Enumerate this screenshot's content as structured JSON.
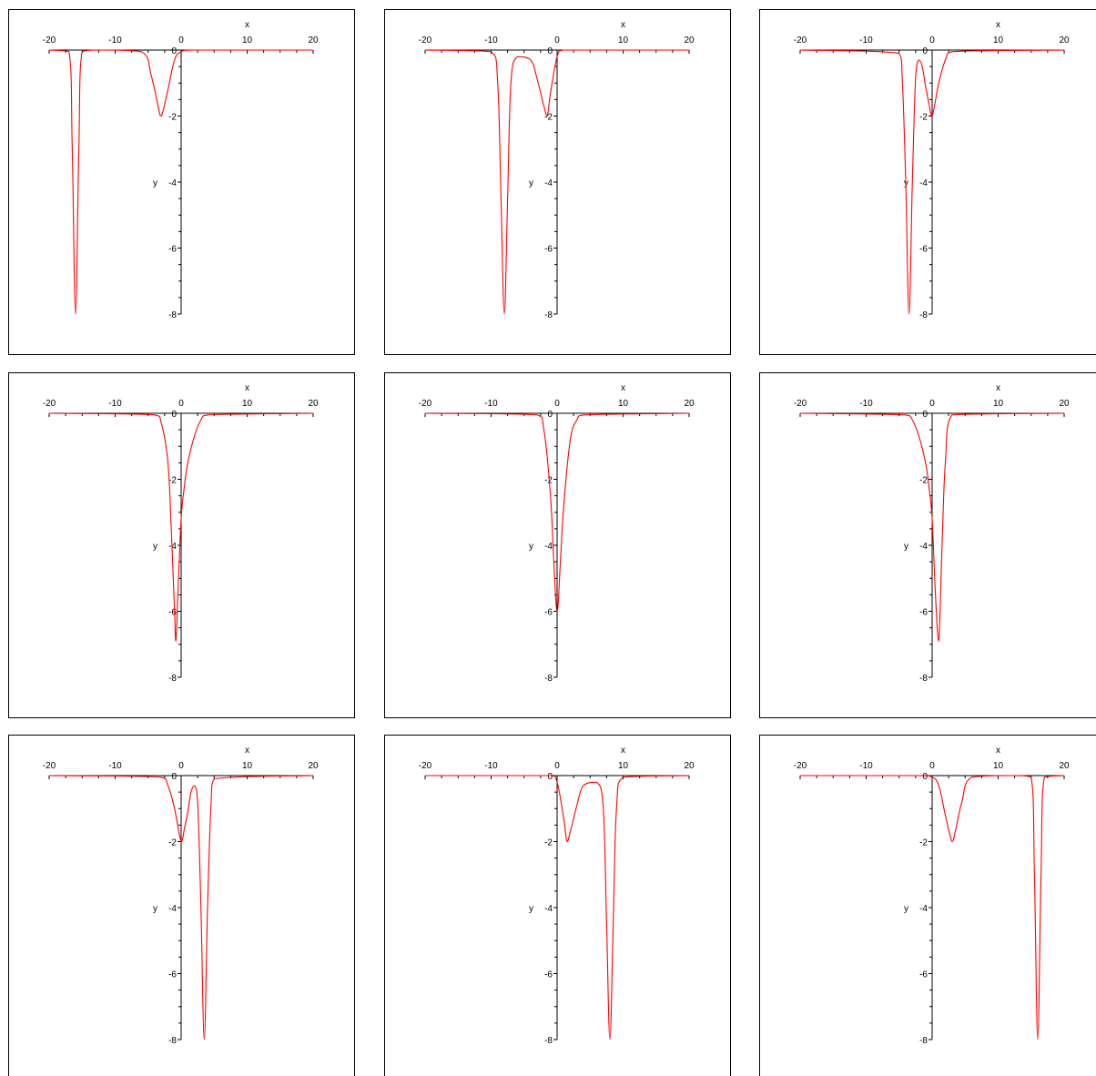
{
  "colors": {
    "curve": "#ff0000",
    "axis": "#000000",
    "frame": "#000000",
    "background": "#ffffff"
  },
  "chart_data": [
    {
      "type": "line",
      "xlabel": "x",
      "ylabel": "y",
      "xlim": [
        -20,
        20
      ],
      "ylim": [
        -8,
        0
      ],
      "xticks": [
        "-20",
        "-10",
        "0",
        "10",
        "20"
      ],
      "yticks": [
        "0",
        "-2",
        "-4",
        "-6",
        "-8"
      ],
      "series": [
        {
          "x": [
            -20,
            -17,
            -16.5,
            -16,
            -15.5,
            -15,
            -12,
            -6,
            -4.5,
            -3.5,
            -3,
            -2,
            -1,
            0,
            2,
            20
          ],
          "y": [
            0,
            -0.05,
            -3,
            -8,
            -3,
            -0.05,
            0,
            -0.05,
            -0.8,
            -1.7,
            -2.0,
            -1.2,
            -0.3,
            -0.05,
            0,
            0
          ]
        }
      ]
    },
    {
      "type": "line",
      "xlabel": "x",
      "ylabel": "y",
      "xlim": [
        -20,
        20
      ],
      "ylim": [
        -8,
        0
      ],
      "xticks": [
        "-20",
        "-10",
        "0",
        "10",
        "20"
      ],
      "yticks": [
        "0",
        "-2",
        "-4",
        "-6",
        "-8"
      ],
      "series": [
        {
          "x": [
            -20,
            -10,
            -9,
            -8.5,
            -8,
            -7.5,
            -7,
            -6,
            -4,
            -3,
            -2,
            -1.5,
            -1,
            0,
            1,
            20
          ],
          "y": [
            0,
            -0.05,
            -1,
            -4.5,
            -8,
            -4.5,
            -1,
            -0.2,
            -0.3,
            -0.9,
            -1.7,
            -2.0,
            -1.3,
            -0.2,
            0,
            0
          ]
        }
      ]
    },
    {
      "type": "line",
      "xlabel": "x",
      "ylabel": "y",
      "xlim": [
        -20,
        20
      ],
      "ylim": [
        -8,
        0
      ],
      "xticks": [
        "-20",
        "-10",
        "0",
        "10",
        "20"
      ],
      "yticks": [
        "0",
        "-2",
        "-4",
        "-6",
        "-8"
      ],
      "series": [
        {
          "x": [
            -20,
            -5,
            -4.5,
            -4,
            -3.5,
            -3,
            -2.5,
            -2,
            -1.5,
            -1,
            -0.5,
            0,
            1,
            2,
            3,
            20
          ],
          "y": [
            0,
            -0.1,
            -1,
            -4,
            -8,
            -4,
            -0.8,
            -0.3,
            -0.5,
            -1.1,
            -1.6,
            -2.0,
            -1.0,
            -0.3,
            -0.05,
            0
          ]
        }
      ]
    },
    {
      "type": "line",
      "xlabel": "x",
      "ylabel": "y",
      "xlim": [
        -20,
        20
      ],
      "ylim": [
        -8,
        0
      ],
      "xticks": [
        "-20",
        "-10",
        "0",
        "10",
        "20"
      ],
      "yticks": [
        "0",
        "-2",
        "-4",
        "-6",
        "-8"
      ],
      "series": [
        {
          "x": [
            -20,
            -4,
            -3,
            -2,
            -1.5,
            -1,
            -0.8,
            -0.5,
            0,
            0.5,
            1,
            2,
            3,
            4,
            20
          ],
          "y": [
            0,
            -0.05,
            -0.3,
            -1.5,
            -3.5,
            -6.0,
            -6.9,
            -5.5,
            -3.2,
            -2.2,
            -1.5,
            -0.7,
            -0.2,
            -0.05,
            0
          ]
        }
      ]
    },
    {
      "type": "line",
      "xlabel": "x",
      "ylabel": "y",
      "xlim": [
        -20,
        20
      ],
      "ylim": [
        -8,
        0
      ],
      "xticks": [
        "-20",
        "-10",
        "0",
        "10",
        "20"
      ],
      "yticks": [
        "0",
        "-2",
        "-4",
        "-6",
        "-8"
      ],
      "series": [
        {
          "x": [
            -20,
            -3,
            -2,
            -1,
            -0.5,
            0,
            0.5,
            1,
            2,
            3,
            4,
            20
          ],
          "y": [
            0,
            -0.05,
            -0.5,
            -2.5,
            -4.5,
            -6.0,
            -4.5,
            -2.8,
            -0.8,
            -0.2,
            -0.05,
            0
          ]
        }
      ]
    },
    {
      "type": "line",
      "xlabel": "x",
      "ylabel": "y",
      "xlim": [
        -20,
        20
      ],
      "ylim": [
        -8,
        0
      ],
      "xticks": [
        "-20",
        "-10",
        "0",
        "10",
        "20"
      ],
      "yticks": [
        "0",
        "-2",
        "-4",
        "-6",
        "-8"
      ],
      "series": [
        {
          "x": [
            -20,
            -4,
            -3,
            -2,
            -1,
            -0.5,
            0,
            0.5,
            1,
            1.5,
            2,
            3,
            20
          ],
          "y": [
            0,
            -0.05,
            -0.2,
            -0.7,
            -1.5,
            -2.2,
            -3.2,
            -5.5,
            -6.9,
            -4.0,
            -1.5,
            -0.05,
            0
          ]
        }
      ]
    },
    {
      "type": "line",
      "xlabel": "x",
      "ylabel": "y",
      "xlim": [
        -20,
        20
      ],
      "ylim": [
        -8,
        0
      ],
      "xticks": [
        "-20",
        "-10",
        "0",
        "10",
        "20"
      ],
      "yticks": [
        "0",
        "-2",
        "-4",
        "-6",
        "-8"
      ],
      "series": [
        {
          "x": [
            -20,
            -3,
            -2,
            -1,
            0,
            0.5,
            1,
            1.5,
            2,
            2.5,
            3,
            3.5,
            4,
            4.5,
            5,
            20
          ],
          "y": [
            0,
            -0.05,
            -0.3,
            -1.0,
            -2.0,
            -1.6,
            -1.1,
            -0.5,
            -0.3,
            -0.8,
            -4,
            -8,
            -4,
            -1,
            -0.1,
            0
          ]
        }
      ]
    },
    {
      "type": "line",
      "xlabel": "x",
      "ylabel": "y",
      "xlim": [
        -20,
        20
      ],
      "ylim": [
        -8,
        0
      ],
      "xticks": [
        "-20",
        "-10",
        "0",
        "10",
        "20"
      ],
      "yticks": [
        "0",
        "-2",
        "-4",
        "-6",
        "-8"
      ],
      "series": [
        {
          "x": [
            -20,
            -1,
            0,
            1,
            1.5,
            2,
            3,
            4,
            6,
            7,
            7.5,
            8,
            8.5,
            9,
            10,
            20
          ],
          "y": [
            0,
            0,
            -0.2,
            -1.3,
            -2.0,
            -1.7,
            -0.9,
            -0.3,
            -0.2,
            -1,
            -4.5,
            -8,
            -4.5,
            -1,
            -0.05,
            0
          ]
        }
      ]
    },
    {
      "type": "line",
      "xlabel": "x",
      "ylabel": "y",
      "xlim": [
        -20,
        20
      ],
      "ylim": [
        -8,
        0
      ],
      "xticks": [
        "-20",
        "-10",
        "0",
        "10",
        "20"
      ],
      "yticks": [
        "0",
        "-2",
        "-4",
        "-6",
        "-8"
      ],
      "series": [
        {
          "x": [
            -20,
            -2,
            0,
            1,
            2,
            3,
            3.5,
            4.5,
            6,
            12,
            15,
            15.5,
            16,
            16.5,
            17,
            20
          ],
          "y": [
            0,
            0,
            -0.05,
            -0.3,
            -1.2,
            -2.0,
            -1.7,
            -0.8,
            -0.05,
            0,
            -0.05,
            -3,
            -8,
            -3,
            -0.05,
            0
          ]
        }
      ]
    }
  ]
}
